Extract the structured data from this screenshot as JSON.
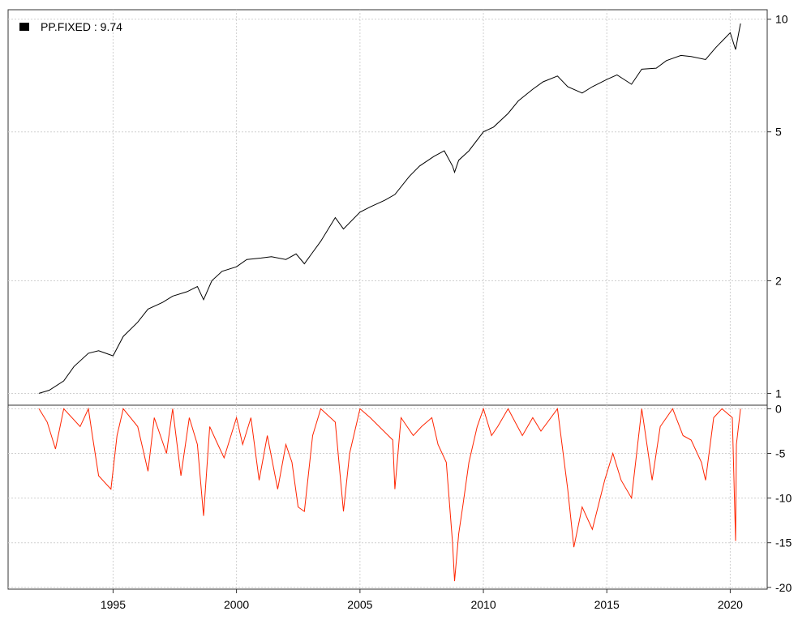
{
  "chart_data": [
    {
      "type": "line",
      "title": "",
      "scale": "log",
      "legend": {
        "position": "top-left",
        "label": "PP.FIXED : 9.74",
        "color": "#000000"
      },
      "series": [
        {
          "name": "PP.FIXED",
          "color": "#000000",
          "points": [
            [
              "1992-01-01",
              1.0
            ],
            [
              "1992-06-01",
              1.02
            ],
            [
              "1993-01-01",
              1.08
            ],
            [
              "1993-06-01",
              1.18
            ],
            [
              "1994-01-01",
              1.28
            ],
            [
              "1994-06-01",
              1.3
            ],
            [
              "1995-01-01",
              1.26
            ],
            [
              "1995-06-01",
              1.42
            ],
            [
              "1996-01-01",
              1.55
            ],
            [
              "1996-06-01",
              1.68
            ],
            [
              "1997-01-01",
              1.75
            ],
            [
              "1997-06-01",
              1.82
            ],
            [
              "1998-01-01",
              1.87
            ],
            [
              "1998-06-01",
              1.93
            ],
            [
              "1998-09-01",
              1.78
            ],
            [
              "1999-01-01",
              2.0
            ],
            [
              "1999-06-01",
              2.12
            ],
            [
              "2000-01-01",
              2.18
            ],
            [
              "2000-06-01",
              2.28
            ],
            [
              "2001-01-01",
              2.3
            ],
            [
              "2001-06-01",
              2.32
            ],
            [
              "2002-01-01",
              2.28
            ],
            [
              "2002-06-01",
              2.36
            ],
            [
              "2002-10-01",
              2.22
            ],
            [
              "2003-01-01",
              2.34
            ],
            [
              "2003-06-01",
              2.55
            ],
            [
              "2004-01-01",
              2.95
            ],
            [
              "2004-05-01",
              2.75
            ],
            [
              "2005-01-01",
              3.05
            ],
            [
              "2005-06-01",
              3.15
            ],
            [
              "2006-01-01",
              3.28
            ],
            [
              "2006-06-01",
              3.4
            ],
            [
              "2007-01-01",
              3.8
            ],
            [
              "2007-06-01",
              4.05
            ],
            [
              "2008-01-01",
              4.3
            ],
            [
              "2008-06-01",
              4.45
            ],
            [
              "2008-10-01",
              4.05
            ],
            [
              "2008-11-01",
              3.9
            ],
            [
              "2009-01-01",
              4.2
            ],
            [
              "2009-06-01",
              4.45
            ],
            [
              "2010-01-01",
              5.0
            ],
            [
              "2010-06-01",
              5.15
            ],
            [
              "2011-01-01",
              5.6
            ],
            [
              "2011-06-01",
              6.05
            ],
            [
              "2012-01-01",
              6.5
            ],
            [
              "2012-06-01",
              6.8
            ],
            [
              "2013-01-01",
              7.05
            ],
            [
              "2013-06-01",
              6.6
            ],
            [
              "2014-01-01",
              6.35
            ],
            [
              "2014-06-01",
              6.6
            ],
            [
              "2015-01-01",
              6.9
            ],
            [
              "2015-06-01",
              7.1
            ],
            [
              "2016-01-01",
              6.7
            ],
            [
              "2016-06-01",
              7.35
            ],
            [
              "2017-01-01",
              7.4
            ],
            [
              "2017-06-01",
              7.75
            ],
            [
              "2018-01-01",
              8.0
            ],
            [
              "2018-06-01",
              7.95
            ],
            [
              "2019-01-01",
              7.8
            ],
            [
              "2019-06-01",
              8.4
            ],
            [
              "2020-01-01",
              9.2
            ],
            [
              "2020-03-20",
              8.3
            ],
            [
              "2020-06-01",
              9.74
            ]
          ]
        }
      ],
      "y_ticks": [
        "1",
        "2",
        "5",
        "10"
      ],
      "y_ticks_values": [
        1,
        2,
        5,
        10
      ],
      "ylim": [
        0.93,
        10.6
      ],
      "grid": true
    },
    {
      "type": "area",
      "title": "",
      "series": [
        {
          "name": "",
          "color": "#ff2400",
          "points": [
            [
              "1992-01-01",
              0
            ],
            [
              "1992-05-01",
              -1.5
            ],
            [
              "1992-09-01",
              -4.5
            ],
            [
              "1993-01-01",
              0
            ],
            [
              "1993-09-01",
              -2.0
            ],
            [
              "1994-01-01",
              0
            ],
            [
              "1994-03-01",
              -3.0
            ],
            [
              "1994-06-01",
              -7.5
            ],
            [
              "1994-12-01",
              -9.0
            ],
            [
              "1995-03-01",
              -3.0
            ],
            [
              "1995-06-01",
              0
            ],
            [
              "1996-01-01",
              -2.0
            ],
            [
              "1996-06-01",
              -7.0
            ],
            [
              "1996-09-01",
              -1.0
            ],
            [
              "1997-03-01",
              -5.0
            ],
            [
              "1997-06-01",
              0
            ],
            [
              "1997-10-01",
              -7.5
            ],
            [
              "1998-02-01",
              -1.0
            ],
            [
              "1998-06-01",
              -4.0
            ],
            [
              "1998-09-01",
              -12.0
            ],
            [
              "1998-12-01",
              -2.0
            ],
            [
              "1999-03-01",
              -3.5
            ],
            [
              "1999-07-01",
              -5.5
            ],
            [
              "2000-01-01",
              -1.0
            ],
            [
              "2000-04-01",
              -4.0
            ],
            [
              "2000-08-01",
              -1.0
            ],
            [
              "2000-12-01",
              -8.0
            ],
            [
              "2001-04-01",
              -3.0
            ],
            [
              "2001-09-01",
              -9.0
            ],
            [
              "2002-01-01",
              -4.0
            ],
            [
              "2002-04-01",
              -6.0
            ],
            [
              "2002-07-01",
              -11.0
            ],
            [
              "2002-10-01",
              -11.5
            ],
            [
              "2003-02-01",
              -3.0
            ],
            [
              "2003-06-01",
              0
            ],
            [
              "2004-01-01",
              -1.5
            ],
            [
              "2004-05-01",
              -11.5
            ],
            [
              "2004-08-01",
              -5.0
            ],
            [
              "2005-01-01",
              0
            ],
            [
              "2005-06-01",
              -1.0
            ],
            [
              "2006-05-01",
              -3.5
            ],
            [
              "2006-06-01",
              -9.0
            ],
            [
              "2006-09-01",
              -1.0
            ],
            [
              "2007-03-01",
              -3.0
            ],
            [
              "2007-07-01",
              -2.0
            ],
            [
              "2007-12-01",
              -1.0
            ],
            [
              "2008-03-01",
              -4.0
            ],
            [
              "2008-07-01",
              -6.0
            ],
            [
              "2008-10-01",
              -15.0
            ],
            [
              "2008-11-01",
              -19.3
            ],
            [
              "2009-01-01",
              -14.0
            ],
            [
              "2009-03-01",
              -11.0
            ],
            [
              "2009-06-01",
              -6.0
            ],
            [
              "2009-10-01",
              -2.0
            ],
            [
              "2010-01-01",
              0
            ],
            [
              "2010-05-01",
              -3.0
            ],
            [
              "2010-08-01",
              -2.0
            ],
            [
              "2011-01-01",
              0
            ],
            [
              "2011-08-01",
              -3.0
            ],
            [
              "2012-01-01",
              -1.0
            ],
            [
              "2012-05-01",
              -2.5
            ],
            [
              "2013-01-01",
              0
            ],
            [
              "2013-06-01",
              -9.0
            ],
            [
              "2013-09-01",
              -15.5
            ],
            [
              "2014-01-01",
              -11.0
            ],
            [
              "2014-06-01",
              -13.5
            ],
            [
              "2014-12-01",
              -8.0
            ],
            [
              "2015-04-01",
              -5.0
            ],
            [
              "2015-08-01",
              -8.0
            ],
            [
              "2016-01-01",
              -10.0
            ],
            [
              "2016-06-01",
              0
            ],
            [
              "2016-11-01",
              -8.0
            ],
            [
              "2017-03-01",
              -2.0
            ],
            [
              "2017-09-01",
              0
            ],
            [
              "2018-02-01",
              -3.0
            ],
            [
              "2018-06-01",
              -3.5
            ],
            [
              "2018-11-01",
              -6.0
            ],
            [
              "2019-01-01",
              -8.0
            ],
            [
              "2019-05-01",
              -1.0
            ],
            [
              "2019-09-01",
              0
            ],
            [
              "2020-02-01",
              -1.0
            ],
            [
              "2020-03-20",
              -14.8
            ],
            [
              "2020-04-01",
              -4.0
            ],
            [
              "2020-06-01",
              0
            ]
          ]
        }
      ],
      "y_ticks": [
        "0",
        "-5",
        "-10",
        "-15",
        "-20"
      ],
      "y_ticks_values": [
        0,
        -5,
        -10,
        -15,
        -20
      ],
      "ylim": [
        -20.2,
        0.4
      ],
      "grid": true
    }
  ],
  "x_axis": {
    "ticks": [
      "1995",
      "2000",
      "2005",
      "2010",
      "2015",
      "2020"
    ],
    "tick_dates": [
      "1995-01-01",
      "2000-01-01",
      "2005-01-01",
      "2010-01-01",
      "2015-01-01",
      "2020-01-01"
    ],
    "xlim": [
      "1990-10-01",
      "2021-07-01"
    ]
  }
}
